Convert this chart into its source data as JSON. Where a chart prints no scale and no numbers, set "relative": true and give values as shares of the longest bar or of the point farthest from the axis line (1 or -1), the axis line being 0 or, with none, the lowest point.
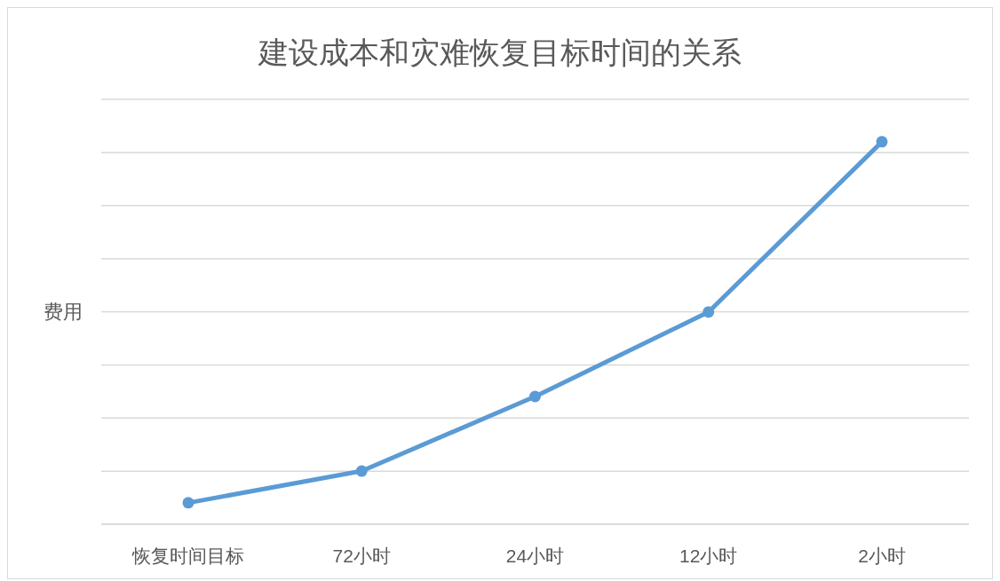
{
  "chart_data": {
    "type": "line",
    "title": "建设成本和灾难恢复目标时间的关系",
    "ylabel": "费用",
    "categories": [
      "恢复时间目标",
      "72小时",
      "24小时",
      "12小时",
      "2小时"
    ],
    "series": [
      {
        "color": "#5b9bd5",
        "values": [
          0.056,
          0.139,
          0.334,
          0.555,
          1
        ]
      }
    ],
    "relative": true,
    "grid": "y",
    "marker": "circle",
    "line_style": "solid",
    "legend": false
  }
}
